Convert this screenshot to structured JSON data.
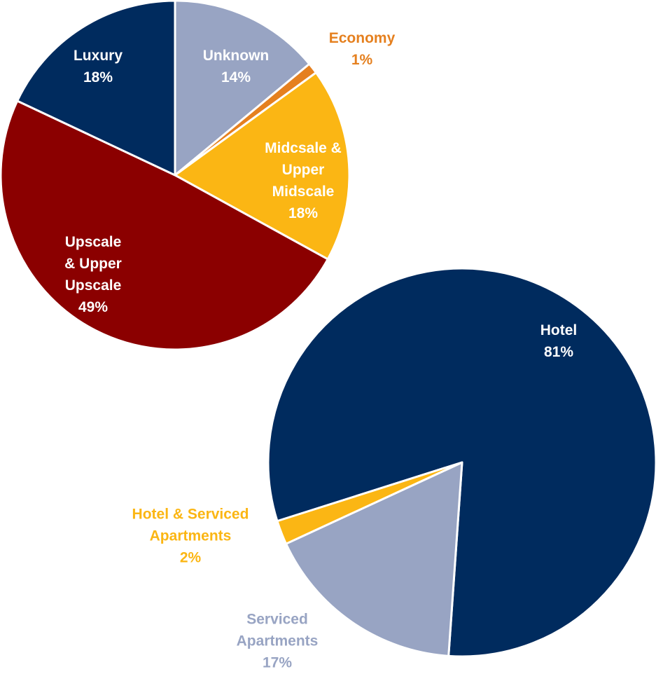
{
  "chart_data": [
    {
      "type": "pie",
      "categories": [
        "Unknown",
        "Economy",
        "Midcsale & Upper Midscale",
        "Upscale & Upper Upscale",
        "Luxury"
      ],
      "values": [
        14,
        1,
        18,
        49,
        18
      ],
      "value_labels": [
        "14%",
        "1%",
        "18%",
        "49%",
        "18%"
      ],
      "colors": [
        "#98a4c3",
        "#e5801f",
        "#fbb614",
        "#8b0000",
        "#002b5e"
      ]
    },
    {
      "type": "pie",
      "categories": [
        "Hotel",
        "Serviced Apartments",
        "Hotel & Serviced Apartments"
      ],
      "values": [
        81,
        17,
        2
      ],
      "value_labels": [
        "81%",
        "17%",
        "2%"
      ],
      "colors": [
        "#002b5e",
        "#98a4c3",
        "#fbb614"
      ]
    }
  ]
}
